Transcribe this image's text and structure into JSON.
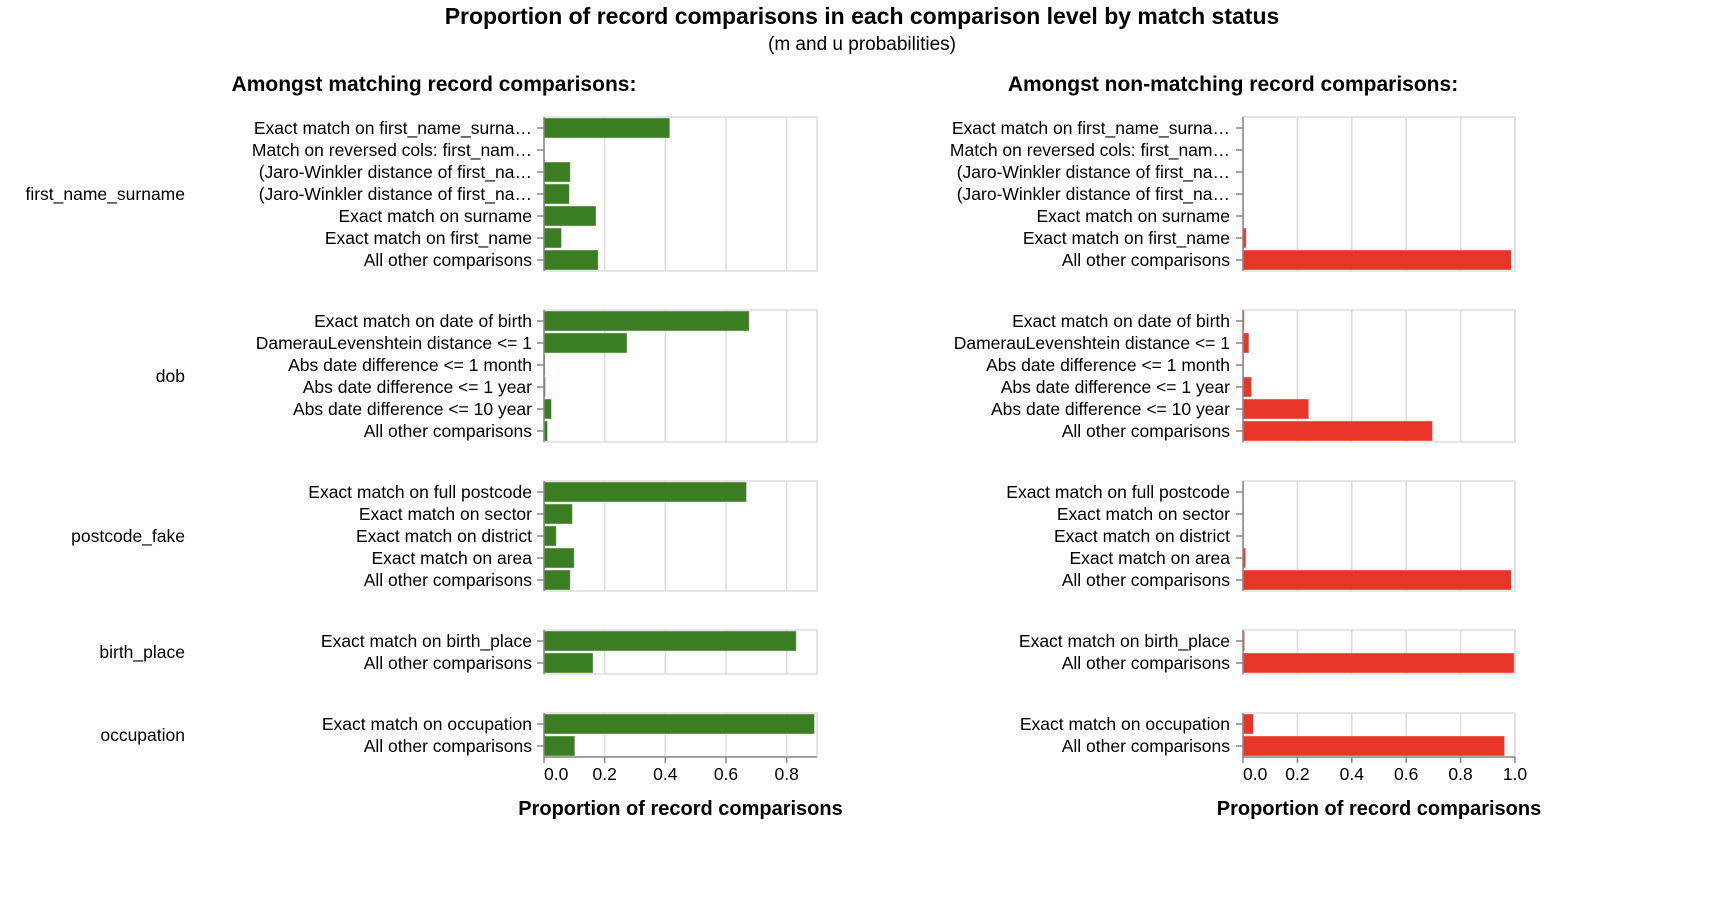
{
  "chart_data": {
    "type": "bar",
    "orientation": "horizontal",
    "title": "Proportion of record comparisons in each comparison level by match status",
    "subtitle": "(m and u probabilities)",
    "grid": true,
    "colors": {
      "matching": "#3a7d23",
      "non_matching": "#e8352a",
      "grid": "#dddddd"
    },
    "panels": [
      {
        "title": "Amongst matching record comparisons:",
        "xlabel": "Proportion of record comparisons",
        "xlim": [
          0,
          0.9
        ],
        "ticks": [
          "0.0",
          "0.2",
          "0.4",
          "0.6",
          "0.8"
        ],
        "tick_values": [
          0,
          0.2,
          0.4,
          0.6,
          0.8
        ],
        "color": "#3a7d23",
        "show_groups": true
      },
      {
        "title": "Amongst non-matching record comparisons:",
        "xlabel": "Proportion of record comparisons",
        "xlim": [
          0,
          1.0
        ],
        "ticks": [
          "0.0",
          "0.2",
          "0.4",
          "0.6",
          "0.8",
          "1.0"
        ],
        "tick_values": [
          0,
          0.2,
          0.4,
          0.6,
          0.8,
          1.0
        ],
        "color": "#e8352a",
        "show_groups": false
      }
    ],
    "groups": [
      {
        "name": "first_name_surname",
        "levels": [
          "Exact match on first_name_surna…",
          "Match on reversed cols: first_nam…",
          "(Jaro-Winkler distance of first_na…",
          "(Jaro-Winkler distance of first_na…",
          "Exact match on surname",
          "Exact match on first_name",
          "All other comparisons"
        ],
        "m": [
          0.413,
          0.0,
          0.085,
          0.082,
          0.17,
          0.056,
          0.177
        ],
        "u": [
          0.0005,
          0.0,
          0.0003,
          0.0003,
          0.001,
          0.01,
          0.985
        ]
      },
      {
        "name": "dob",
        "levels": [
          "Exact match on date of birth",
          "DamerauLevenshtein distance <= 1",
          "Abs date difference <= 1 month",
          "Abs date difference <= 1 year",
          "Abs date difference <= 10 year",
          "All other comparisons"
        ],
        "m": [
          0.675,
          0.272,
          0.002,
          0.003,
          0.023,
          0.01
        ],
        "u": [
          0.003,
          0.02,
          0.001,
          0.03,
          0.24,
          0.695
        ]
      },
      {
        "name": "postcode_fake",
        "levels": [
          "Exact match on full postcode",
          "Exact match on sector",
          "Exact match on district",
          "Exact match on area",
          "All other comparisons"
        ],
        "m": [
          0.666,
          0.092,
          0.039,
          0.098,
          0.085
        ],
        "u": [
          0.0005,
          0.001,
          0.001,
          0.008,
          0.985
        ]
      },
      {
        "name": "birth_place",
        "levels": [
          "Exact match on birth_place",
          "All other comparisons"
        ],
        "m": [
          0.83,
          0.16
        ],
        "u": [
          0.004,
          0.995
        ]
      },
      {
        "name": "occupation",
        "levels": [
          "Exact match on occupation",
          "All other comparisons"
        ],
        "m": [
          0.89,
          0.1
        ],
        "u": [
          0.037,
          0.96
        ]
      }
    ]
  }
}
